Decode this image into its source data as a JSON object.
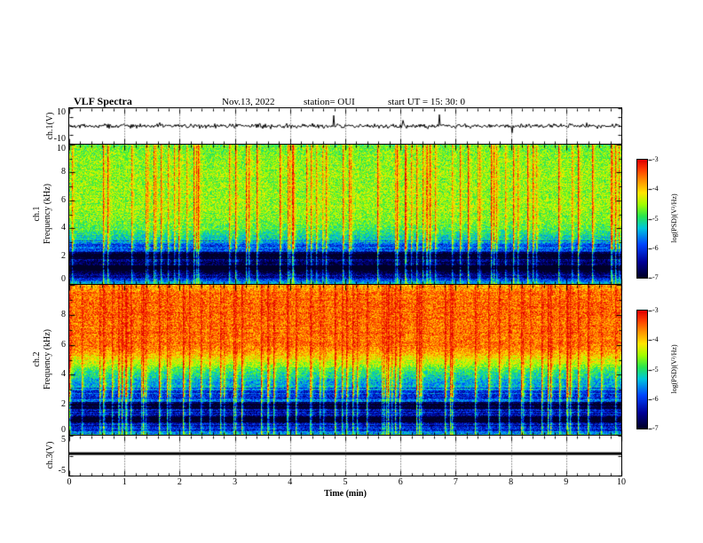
{
  "header": {
    "title": "VLF Spectra",
    "date": "Nov.13, 2022",
    "station": "station= OUI",
    "start_ut": "start UT  =   15: 30: 0"
  },
  "x_axis": {
    "label": "Time (min)",
    "ticks": [
      "0",
      "1",
      "2",
      "3",
      "4",
      "5",
      "6",
      "7",
      "8",
      "9",
      "10"
    ],
    "range_min": [
      0,
      10
    ]
  },
  "colorbar": {
    "label": "log(PSD)(V²/Hz)",
    "ticks": [
      "-3",
      "-4",
      "-5",
      "-6",
      "-7"
    ],
    "range": [
      -7,
      -3
    ]
  },
  "panels": [
    {
      "id": "ch1_wave",
      "ylabel": "ch.1(V)",
      "yticks": [
        "10",
        "-10"
      ],
      "ytick_values": [
        10,
        -10
      ],
      "ylim": [
        -10,
        10
      ]
    },
    {
      "id": "ch1_spec",
      "ylabel_lines": [
        "ch.1",
        "Frequency (kHz)"
      ],
      "yticks": [
        "10",
        "8",
        "6",
        "4",
        "2",
        "0"
      ],
      "ytick_values": [
        10,
        8,
        6,
        4,
        2,
        0
      ],
      "ylim": [
        0,
        10
      ]
    },
    {
      "id": "ch2_spec",
      "ylabel_lines": [
        "ch.2",
        "Frequency (kHz)"
      ],
      "yticks": [
        "8",
        "6",
        "4",
        "2",
        "0"
      ],
      "ytick_values": [
        8,
        6,
        4,
        2,
        0
      ],
      "ylim": [
        0,
        10
      ]
    },
    {
      "id": "ch3_wave",
      "ylabel": "ch.3(V)",
      "yticks": [
        "5",
        "-5"
      ],
      "ytick_values": [
        5,
        -5
      ],
      "ylim": [
        -5,
        5
      ]
    }
  ],
  "chart_data": [
    {
      "type": "line",
      "name": "ch.1 voltage waveform",
      "xlabel": "Time (min)",
      "ylabel": "ch.1(V)",
      "xlim": [
        0,
        10
      ],
      "ylim": [
        -10,
        10
      ],
      "description": "continuous black broadband noise trace centred on 0 V, typical excursion about ±1.5 V with occasional impulsive spikes to roughly ±5 V",
      "noise_amplitude_v": 1.1,
      "spike_amplitude_v": 4,
      "spike_probability": 0.008
    },
    {
      "type": "heatmap",
      "name": "ch.1 VLF spectrogram",
      "xlabel": "Time (min)",
      "ylabel": "ch.1 Frequency (kHz)",
      "xlim": [
        0,
        10
      ],
      "ylim_khz": [
        0,
        10
      ],
      "colorbar_label": "log(PSD)(V²/Hz)",
      "value_range": [
        -7,
        -3
      ],
      "freq_profile": [
        {
          "f_khz": 0.0,
          "log_psd": -5.3
        },
        {
          "f_khz": 0.4,
          "log_psd": -6.5
        },
        {
          "f_khz": 1.2,
          "log_psd": -6.8
        },
        {
          "f_khz": 2.0,
          "log_psd": -6.5
        },
        {
          "f_khz": 2.6,
          "log_psd": -6.0
        },
        {
          "f_khz": 3.2,
          "log_psd": -5.4
        },
        {
          "f_khz": 4.0,
          "log_psd": -4.8
        },
        {
          "f_khz": 5.0,
          "log_psd": -4.6
        },
        {
          "f_khz": 7.0,
          "log_psd": -4.55
        },
        {
          "f_khz": 9.0,
          "log_psd": -4.6
        },
        {
          "f_khz": 10.0,
          "log_psd": -4.75
        }
      ],
      "dark_bands_khz": [
        [
          0.9,
          1.35
        ],
        [
          1.8,
          2.3
        ]
      ],
      "transients": {
        "density": 0.5,
        "peak_log_psd": -3.1,
        "description": "frequent thin full-height vertical streaks reaching red (≈ -3); green/yellow background 4–10 kHz, dark blue/black banded region 0–3 kHz"
      }
    },
    {
      "type": "heatmap",
      "name": "ch.2 VLF spectrogram",
      "xlabel": "Time (min)",
      "ylabel": "ch.2 Frequency (kHz)",
      "xlim": [
        0,
        10
      ],
      "ylim_khz": [
        0,
        10
      ],
      "colorbar_label": "log(PSD)(V²/Hz)",
      "value_range": [
        -7,
        -3
      ],
      "freq_profile": [
        {
          "f_khz": 0.0,
          "log_psd": -5.4
        },
        {
          "f_khz": 0.5,
          "log_psd": -6.4
        },
        {
          "f_khz": 1.2,
          "log_psd": -6.6
        },
        {
          "f_khz": 2.0,
          "log_psd": -6.2
        },
        {
          "f_khz": 3.0,
          "log_psd": -5.8
        },
        {
          "f_khz": 3.6,
          "log_psd": -5.4
        },
        {
          "f_khz": 4.2,
          "log_psd": -5.0
        },
        {
          "f_khz": 4.8,
          "log_psd": -4.4
        },
        {
          "f_khz": 5.4,
          "log_psd": -3.9
        },
        {
          "f_khz": 6.0,
          "log_psd": -3.6
        },
        {
          "f_khz": 8.5,
          "log_psd": -3.5
        },
        {
          "f_khz": 9.5,
          "log_psd": -3.6
        },
        {
          "f_khz": 10.0,
          "log_psd": -3.8
        }
      ],
      "dark_bands_khz": [
        [
          0.8,
          1.2
        ],
        [
          1.7,
          2.2
        ]
      ],
      "transients": {
        "density": 0.55,
        "peak_log_psd": -3.0,
        "description": "dense orange/red region 5–10 kHz with vertical yellow/red streaks; blue/cyan banded region 0–4 kHz"
      }
    },
    {
      "type": "line",
      "name": "ch.3 voltage",
      "xlabel": "Time (min)",
      "ylabel": "ch.3(V)",
      "xlim": [
        0,
        10
      ],
      "ylim": [
        -5,
        5
      ],
      "description": "constant heavy black line at about +0.5 V for the whole record",
      "value_v": 0.5
    }
  ]
}
